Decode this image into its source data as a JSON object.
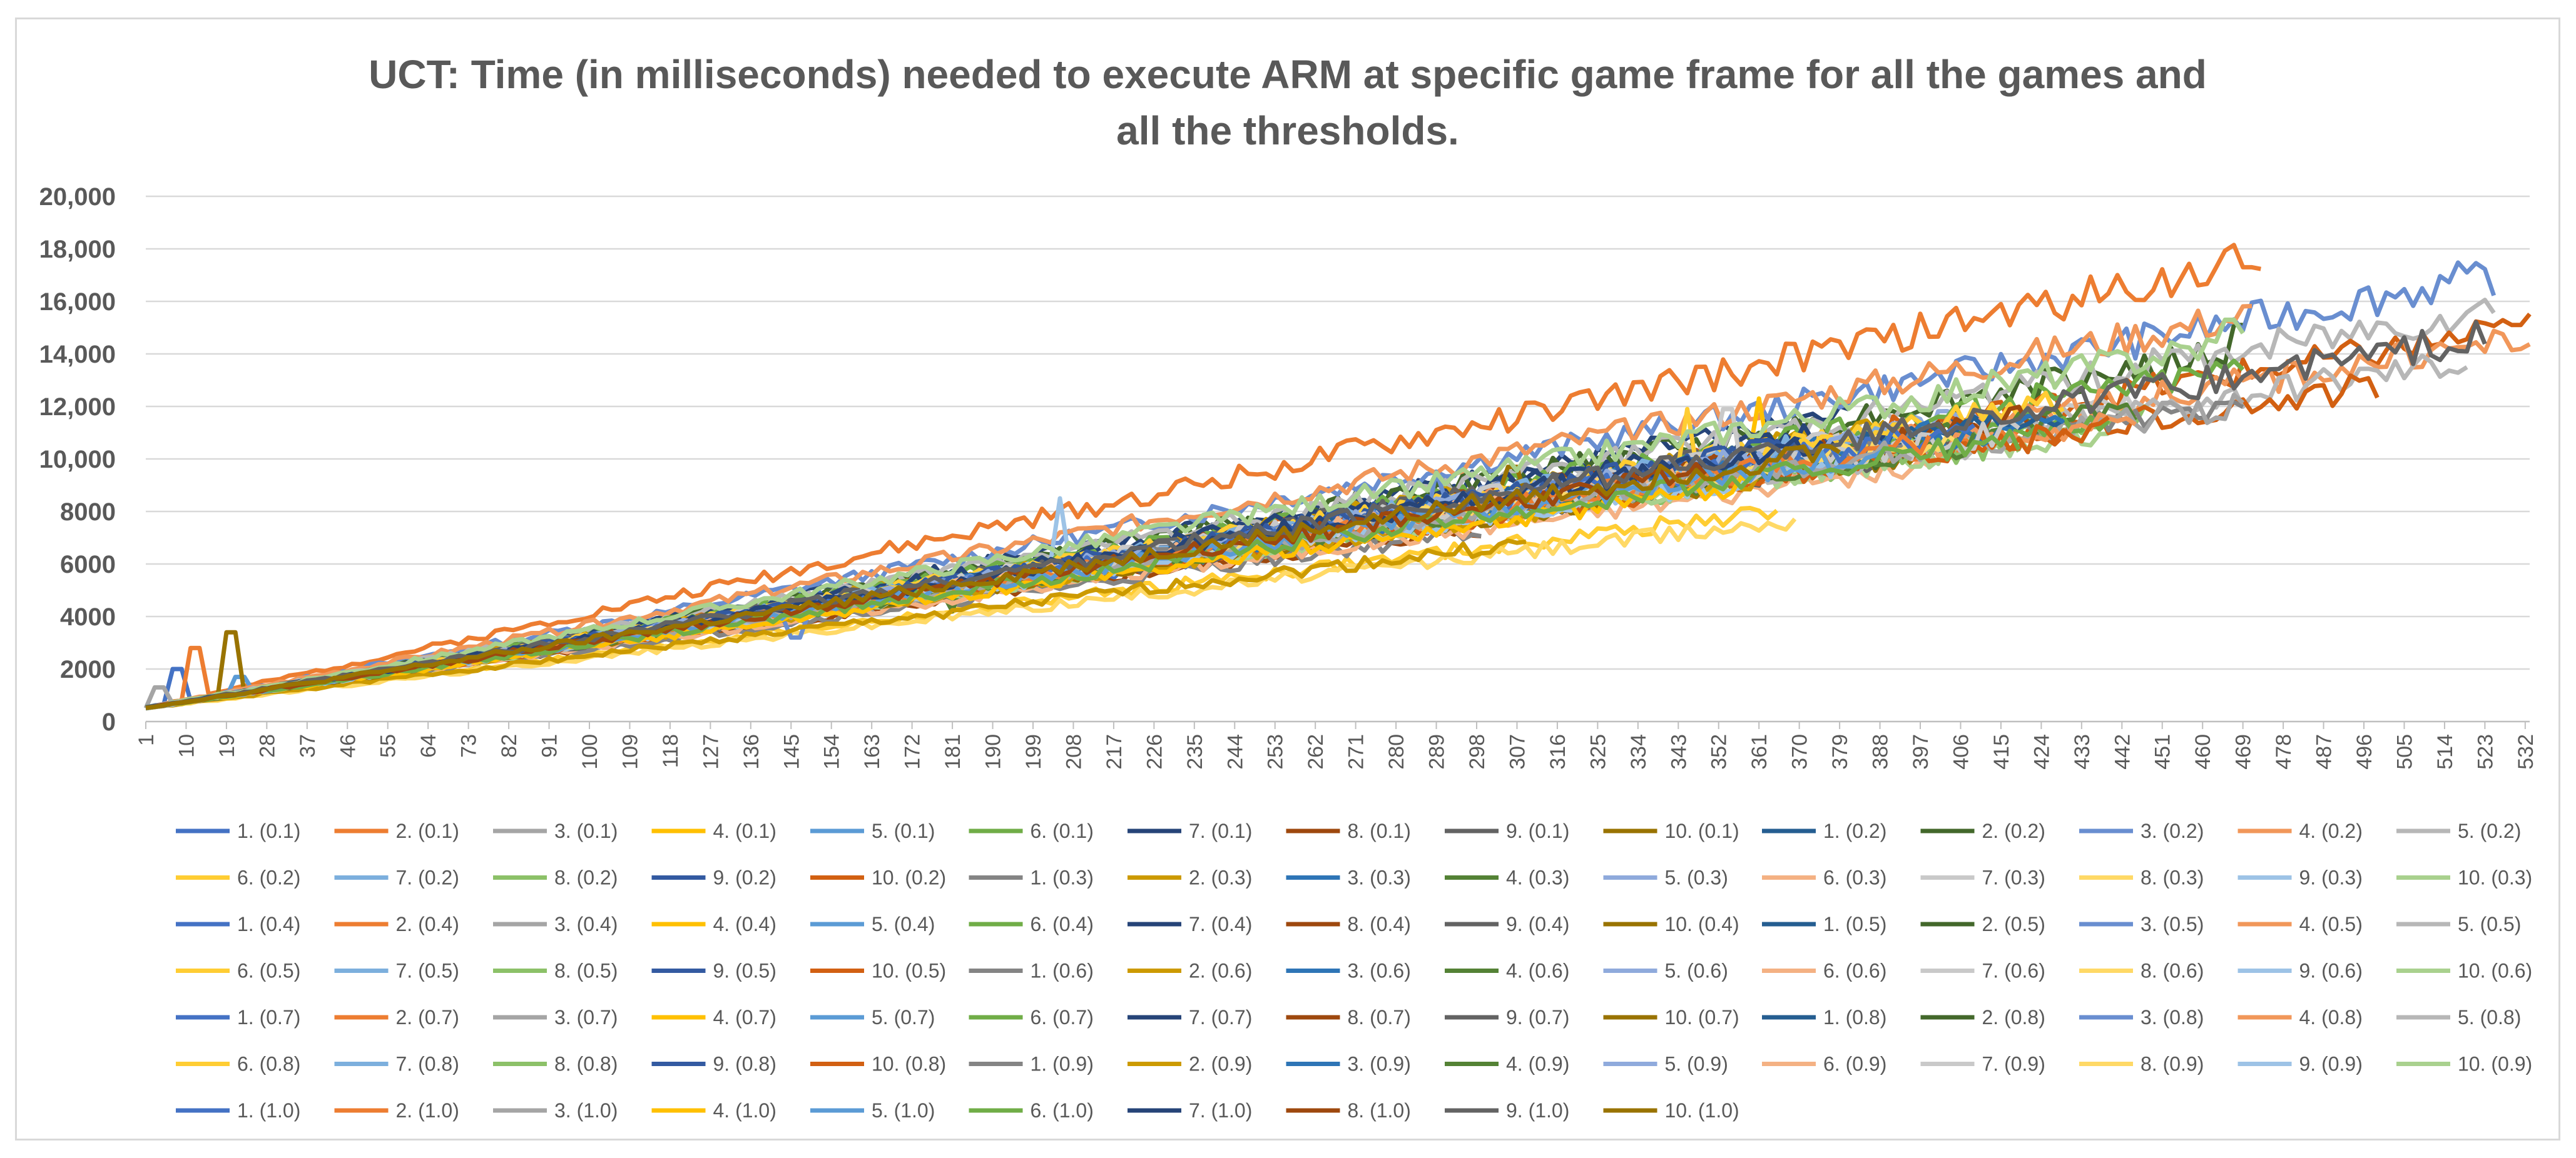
{
  "chart_data": {
    "type": "line",
    "title_lines": [
      "UCT: Time (in milliseconds) needed to execute ARM at specific game frame for all the games and",
      "all the thresholds."
    ],
    "xlabel": "",
    "ylabel": "",
    "ylim": [
      0,
      20000
    ],
    "yticks": [
      0,
      2000,
      4000,
      6000,
      8000,
      10000,
      12000,
      14000,
      16000,
      18000,
      20000
    ],
    "ytick_labels": [
      "0",
      "2000",
      "4000",
      "6000",
      "8000",
      "10,000",
      "12,000",
      "14,000",
      "16,000",
      "18,000",
      "20,000"
    ],
    "x_range": [
      1,
      533
    ],
    "x_tick_labels": [
      "1",
      "10",
      "19",
      "28",
      "37",
      "46",
      "55",
      "64",
      "73",
      "82",
      "91",
      "100",
      "109",
      "118",
      "127",
      "136",
      "145",
      "154",
      "163",
      "172",
      "181",
      "190",
      "199",
      "208",
      "217",
      "226",
      "235",
      "244",
      "253",
      "262",
      "271",
      "280",
      "289",
      "298",
      "307",
      "316",
      "325",
      "334",
      "343",
      "352",
      "361",
      "370",
      "379",
      "388",
      "397",
      "406",
      "415",
      "424",
      "433",
      "442",
      "451",
      "460",
      "469",
      "478",
      "487",
      "496",
      "505",
      "514",
      "523",
      "532"
    ],
    "grid": true,
    "legend_position": "bottom",
    "palette": [
      "#4472c4",
      "#ed7d31",
      "#a5a5a5",
      "#ffc000",
      "#5b9bd5",
      "#70ad47",
      "#264478",
      "#9e480e",
      "#636363",
      "#997300",
      "#255e91",
      "#43682b",
      "#698ed0",
      "#f1975a",
      "#b7b7b7",
      "#ffcd33",
      "#7cafdd",
      "#8cc168",
      "#335aa1",
      "#d26012",
      "#848484",
      "#cc9a00",
      "#2e75b6",
      "#548235",
      "#8faadc",
      "#f4b183",
      "#c9c9c9",
      "#ffd966",
      "#9dc3e6",
      "#a9d18e"
    ],
    "series": [
      {
        "name": "1. (0.1)",
        "end": 256,
        "slope": 24.0,
        "spikes": [
          [
            8,
            2000
          ]
        ]
      },
      {
        "name": "2. (0.1)",
        "end": 474,
        "slope": 36.2,
        "spikes": [
          [
            12,
            2800
          ],
          [
            470,
            17300
          ]
        ]
      },
      {
        "name": "3. (0.1)",
        "end": 260,
        "slope": 23.8,
        "spikes": [
          [
            4,
            1300
          ]
        ]
      },
      {
        "name": "4. (0.1)",
        "end": 310,
        "slope": 25.5,
        "spikes": []
      },
      {
        "name": "5. (0.1)",
        "end": 248,
        "slope": 24.6,
        "spikes": [
          [
            22,
            1700
          ]
        ]
      },
      {
        "name": "6. (0.1)",
        "end": 370,
        "slope": 26.0,
        "spikes": []
      },
      {
        "name": "7. (0.1)",
        "end": 382,
        "slope": 29.3,
        "spikes": []
      },
      {
        "name": "8. (0.1)",
        "end": 300,
        "slope": 23.0,
        "spikes": []
      },
      {
        "name": "9. (0.1)",
        "end": 330,
        "slope": 24.4,
        "spikes": []
      },
      {
        "name": "10. (0.1)",
        "end": 290,
        "slope": 24.7,
        "spikes": [
          [
            20,
            3400
          ]
        ]
      },
      {
        "name": "1. (0.2)",
        "end": 395,
        "slope": 25.8,
        "spikes": []
      },
      {
        "name": "2. (0.2)",
        "end": 470,
        "slope": 29.0,
        "spikes": [
          [
            468,
            15100
          ]
        ]
      },
      {
        "name": "3. (0.2)",
        "end": 525,
        "slope": 31.4,
        "spikes": [
          [
            519,
            17100
          ]
        ]
      },
      {
        "name": "4. (0.2)",
        "end": 472,
        "slope": 31.8,
        "spikes": []
      },
      {
        "name": "5. (0.2)",
        "end": 525,
        "slope": 29.1,
        "spikes": []
      },
      {
        "name": "6. (0.2)",
        "end": 365,
        "slope": 20.5,
        "spikes": []
      },
      {
        "name": "7. (0.2)",
        "end": 240,
        "slope": 24.8,
        "spikes": [
          [
            242,
            7000
          ]
        ]
      },
      {
        "name": "8. (0.2)",
        "end": 420,
        "slope": 24.2,
        "spikes": []
      },
      {
        "name": "9. (0.2)",
        "end": 330,
        "slope": 25.6,
        "spikes": []
      },
      {
        "name": "10. (0.2)",
        "end": 533,
        "slope": 27.2,
        "spikes": [
          [
            530,
            15100
          ]
        ]
      },
      {
        "name": "1. (0.3)",
        "end": 300,
        "slope": 22.6,
        "spikes": []
      },
      {
        "name": "2. (0.3)",
        "end": 390,
        "slope": 27.6,
        "spikes": []
      },
      {
        "name": "3. (0.3)",
        "end": 285,
        "slope": 24.5,
        "spikes": []
      },
      {
        "name": "4. (0.3)",
        "end": 360,
        "slope": 25.2,
        "spikes": [
          [
            181,
            4200
          ]
        ]
      },
      {
        "name": "5. (0.3)",
        "end": 415,
        "slope": 27.0,
        "spikes": []
      },
      {
        "name": "6. (0.3)",
        "end": 400,
        "slope": 23.1,
        "spikes": []
      },
      {
        "name": "7. (0.3)",
        "end": 445,
        "slope": 25.9,
        "spikes": []
      },
      {
        "name": "8. (0.3)",
        "end": 370,
        "slope": 19.4,
        "spikes": []
      },
      {
        "name": "9. (0.3)",
        "end": 380,
        "slope": 26.8,
        "spikes": [
          [
            205,
            8500
          ]
        ]
      },
      {
        "name": "10. (0.3)",
        "end": 440,
        "slope": 24.1,
        "spikes": []
      },
      {
        "name": "1. (0.4)",
        "end": 350,
        "slope": 26.3,
        "spikes": [
          [
            151,
            5000
          ]
        ]
      },
      {
        "name": "2. (0.4)",
        "end": 345,
        "slope": 26.4,
        "spikes": []
      },
      {
        "name": "3. (0.4)",
        "end": 340,
        "slope": 26.7,
        "spikes": []
      },
      {
        "name": "4. (0.4)",
        "end": 365,
        "slope": 26.7,
        "spikes": [
          [
            188,
            5000
          ],
          [
            361,
            12300
          ]
        ]
      },
      {
        "name": "5. (0.4)",
        "end": 340,
        "slope": 25.2,
        "spikes": []
      },
      {
        "name": "6. (0.4)",
        "end": 470,
        "slope": 27.9,
        "spikes": [
          [
            232,
            6200
          ]
        ]
      },
      {
        "name": "7. (0.4)",
        "end": 380,
        "slope": 28.0,
        "spikes": []
      },
      {
        "name": "8. (0.4)",
        "end": 360,
        "slope": 26.9,
        "spikes": []
      },
      {
        "name": "9. (0.4)",
        "end": 350,
        "slope": 27.4,
        "spikes": []
      },
      {
        "name": "10. (0.4)",
        "end": 330,
        "slope": 26.3,
        "spikes": [
          [
            306,
            9700
          ]
        ]
      },
      {
        "name": "1. (0.5)",
        "end": 420,
        "slope": 26.1,
        "spikes": []
      },
      {
        "name": "2. (0.5)",
        "end": 410,
        "slope": 25.5,
        "spikes": []
      },
      {
        "name": "3. (0.5)",
        "end": 380,
        "slope": 25.8,
        "spikes": [
          [
            146,
            3200
          ]
        ]
      },
      {
        "name": "4. (0.5)",
        "end": 533,
        "slope": 26.5,
        "spikes": []
      },
      {
        "name": "5. (0.5)",
        "end": 520,
        "slope": 25.5,
        "spikes": []
      },
      {
        "name": "6. (0.5)",
        "end": 430,
        "slope": 27.3,
        "spikes": [
          [
            345,
            11900
          ]
        ]
      },
      {
        "name": "7. (0.5)",
        "end": 395,
        "slope": 27.0,
        "spikes": []
      },
      {
        "name": "8. (0.5)",
        "end": 450,
        "slope": 25.0,
        "spikes": []
      },
      {
        "name": "9. (0.5)",
        "end": 385,
        "slope": 26.7,
        "spikes": []
      },
      {
        "name": "10. (0.5)",
        "end": 500,
        "slope": 24.6,
        "spikes": []
      },
      {
        "name": "1. (0.6)",
        "end": 470,
        "slope": 25.1,
        "spikes": []
      },
      {
        "name": "2. (0.6)",
        "end": 310,
        "slope": 20.3,
        "spikes": []
      },
      {
        "name": "3. (0.6)",
        "end": 400,
        "slope": 26.5,
        "spikes": []
      },
      {
        "name": "4. (0.6)",
        "end": 445,
        "slope": 25.7,
        "spikes": []
      },
      {
        "name": "5. (0.6)",
        "end": 400,
        "slope": 25.3,
        "spikes": []
      },
      {
        "name": "6. (0.6)",
        "end": 390,
        "slope": 26.0,
        "spikes": []
      },
      {
        "name": "7. (0.6)",
        "end": 380,
        "slope": 26.9,
        "spikes": [
          [
            354,
            11900
          ]
        ]
      },
      {
        "name": "8. (0.6)",
        "end": 360,
        "slope": 25.5,
        "spikes": []
      },
      {
        "name": "9. (0.6)",
        "end": 370,
        "slope": 24.9,
        "spikes": []
      },
      {
        "name": "10. (0.6)",
        "end": 410,
        "slope": 24.3,
        "spikes": []
      },
      {
        "name": "1. (0.7)",
        "end": 345,
        "slope": 25.7,
        "spikes": []
      },
      {
        "name": "2. (0.7)",
        "end": 420,
        "slope": 24.9,
        "spikes": []
      },
      {
        "name": "3. (0.7)",
        "end": 470,
        "slope": 24.7,
        "spikes": []
      },
      {
        "name": "4. (0.7)",
        "end": 370,
        "slope": 25.3,
        "spikes": []
      },
      {
        "name": "5. (0.7)",
        "end": 330,
        "slope": 25.9,
        "spikes": [
          [
            237,
            7000
          ]
        ]
      },
      {
        "name": "6. (0.7)",
        "end": 440,
        "slope": 25.1,
        "spikes": []
      },
      {
        "name": "7. (0.7)",
        "end": 390,
        "slope": 26.1,
        "spikes": []
      },
      {
        "name": "8. (0.7)",
        "end": 425,
        "slope": 26.2,
        "spikes": []
      },
      {
        "name": "9. (0.7)",
        "end": 410,
        "slope": 24.6,
        "spikes": []
      },
      {
        "name": "10. (0.7)",
        "end": 395,
        "slope": 24.2,
        "spikes": []
      },
      {
        "name": "1. (0.8)",
        "end": 430,
        "slope": 26.4,
        "spikes": []
      },
      {
        "name": "2. (0.8)",
        "end": 400,
        "slope": 24.8,
        "spikes": []
      },
      {
        "name": "3. (0.8)",
        "end": 375,
        "slope": 26.2,
        "spikes": [
          [
            289,
            9500
          ]
        ]
      },
      {
        "name": "4. (0.8)",
        "end": 445,
        "slope": 25.0,
        "spikes": []
      },
      {
        "name": "5. (0.8)",
        "end": 410,
        "slope": 24.5,
        "spikes": []
      },
      {
        "name": "6. (0.8)",
        "end": 395,
        "slope": 26.6,
        "spikes": [
          [
            252,
            7200
          ]
        ]
      },
      {
        "name": "7. (0.8)",
        "end": 380,
        "slope": 25.7,
        "spikes": []
      },
      {
        "name": "8. (0.8)",
        "end": 415,
        "slope": 24.8,
        "spikes": []
      },
      {
        "name": "9. (0.8)",
        "end": 370,
        "slope": 27.1,
        "spikes": []
      },
      {
        "name": "10. (0.8)",
        "end": 440,
        "slope": 24.3,
        "spikes": []
      },
      {
        "name": "1. (0.9)",
        "end": 395,
        "slope": 25.8,
        "spikes": []
      },
      {
        "name": "2. (0.9)",
        "end": 365,
        "slope": 24.1,
        "spikes": []
      },
      {
        "name": "3. (0.9)",
        "end": 430,
        "slope": 25.4,
        "spikes": []
      },
      {
        "name": "4. (0.9)",
        "end": 410,
        "slope": 24.7,
        "spikes": []
      },
      {
        "name": "5. (0.9)",
        "end": 385,
        "slope": 26.5,
        "spikes": []
      },
      {
        "name": "6. (0.9)",
        "end": 350,
        "slope": 25.9,
        "spikes": []
      },
      {
        "name": "7. (0.9)",
        "end": 420,
        "slope": 25.2,
        "spikes": []
      },
      {
        "name": "8. (0.9)",
        "end": 405,
        "slope": 25.6,
        "spikes": []
      },
      {
        "name": "9. (0.9)",
        "end": 380,
        "slope": 24.4,
        "spikes": []
      },
      {
        "name": "10. (0.9)",
        "end": 470,
        "slope": 29.8,
        "spikes": [
          [
            466,
            15300
          ]
        ]
      },
      {
        "name": "1. (1.0)",
        "end": 410,
        "slope": 26.0,
        "spikes": []
      },
      {
        "name": "2. (1.0)",
        "end": 400,
        "slope": 25.3,
        "spikes": []
      },
      {
        "name": "3. (1.0)",
        "end": 395,
        "slope": 24.9,
        "spikes": []
      },
      {
        "name": "4. (1.0)",
        "end": 360,
        "slope": 23.6,
        "spikes": []
      },
      {
        "name": "5. (1.0)",
        "end": 390,
        "slope": 25.1,
        "spikes": []
      },
      {
        "name": "6. (1.0)",
        "end": 420,
        "slope": 24.5,
        "spikes": []
      },
      {
        "name": "7. (1.0)",
        "end": 375,
        "slope": 26.8,
        "spikes": []
      },
      {
        "name": "8. (1.0)",
        "end": 350,
        "slope": 25.7,
        "spikes": []
      },
      {
        "name": "9. (1.0)",
        "end": 524,
        "slope": 27.0,
        "spikes": []
      },
      {
        "name": "10. (1.0)",
        "end": 380,
        "slope": 26.1,
        "spikes": []
      }
    ]
  }
}
